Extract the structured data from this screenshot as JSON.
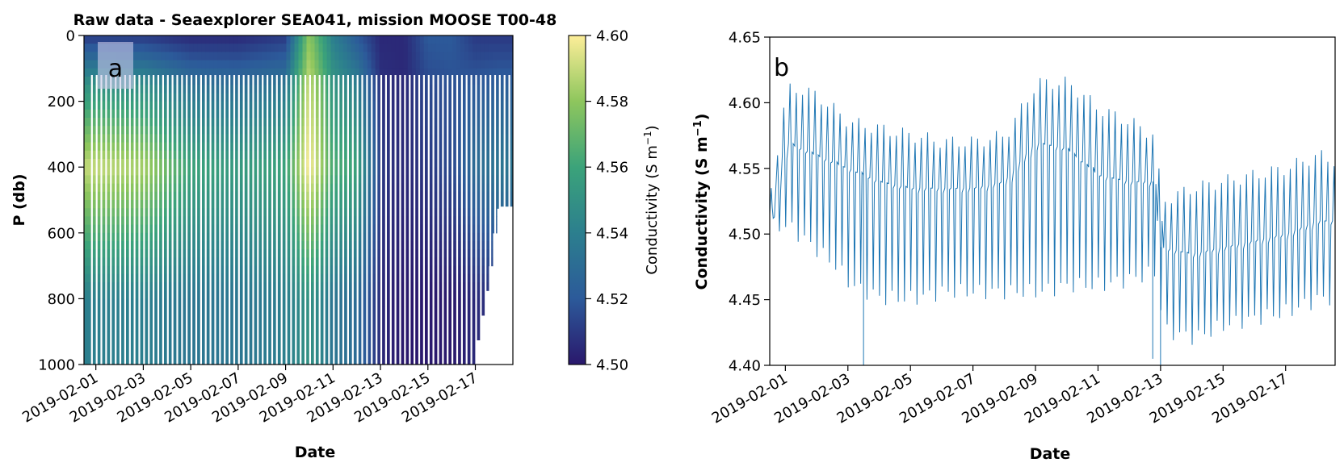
{
  "chart_data": [
    {
      "type": "heatmap",
      "title": "Raw data - Seaexplorer SEA041, mission MOOSE T00-48",
      "panel_label": "a",
      "xlabel": "Date",
      "ylabel": "P (db)",
      "x_ticks": [
        "2019-02-01",
        "2019-02-03",
        "2019-02-05",
        "2019-02-07",
        "2019-02-09",
        "2019-02-11",
        "2019-02-13",
        "2019-02-15",
        "2019-02-17"
      ],
      "y_ticks": [
        0,
        200,
        400,
        600,
        800,
        1000
      ],
      "y_tick_labels": [
        "0",
        "200",
        "400",
        "600",
        "800",
        "1000"
      ],
      "ylim": [
        1000,
        0
      ],
      "xlim": [
        "2019-01-31T12:00",
        "2019-02-18T14:00"
      ],
      "colorbar": {
        "label": "Conductivity (S m",
        "label_superscript": "−1",
        "label_suffix": ")",
        "range": [
          4.5,
          4.6
        ],
        "ticks": [
          4.5,
          4.52,
          4.54,
          4.56,
          4.58,
          4.6
        ],
        "tick_labels": [
          "4.50",
          "4.52",
          "4.54",
          "4.56",
          "4.58",
          "4.60"
        ],
        "colormap": "haline"
      },
      "bottom_depth_profile": {
        "dates": [
          "2019-02-01",
          "2019-02-03",
          "2019-02-05",
          "2019-02-07",
          "2019-02-09",
          "2019-02-10",
          "2019-02-11",
          "2019-02-12",
          "2019-02-13",
          "2019-02-15",
          "2019-02-17",
          "2019-02-18"
        ],
        "depth": [
          1000,
          1000,
          1000,
          1000,
          1000,
          1000,
          1000,
          1000,
          1000,
          1000,
          1000,
          520
        ]
      },
      "conductivity_by_period": {
        "dates": [
          "2019-02-01",
          "2019-02-03",
          "2019-02-05",
          "2019-02-07",
          "2019-02-09",
          "2019-02-10",
          "2019-02-11",
          "2019-02-12",
          "2019-02-13",
          "2019-02-14",
          "2019-02-15",
          "2019-02-16",
          "2019-02-17",
          "2019-02-18"
        ],
        "surface_0_150db": [
          4.51,
          4.51,
          4.505,
          4.505,
          4.51,
          4.58,
          4.54,
          4.52,
          4.505,
          4.505,
          4.52,
          4.52,
          4.51,
          4.51
        ],
        "mid_300_500db": [
          4.59,
          4.585,
          4.56,
          4.555,
          4.56,
          4.6,
          4.565,
          4.56,
          4.51,
          4.505,
          4.51,
          4.515,
          4.53,
          4.535
        ],
        "deep_700_1000db": [
          4.54,
          4.54,
          4.535,
          4.535,
          4.54,
          4.55,
          4.535,
          4.53,
          4.505,
          4.5,
          4.5,
          4.5,
          4.505,
          4.51
        ]
      }
    },
    {
      "type": "line",
      "panel_label": "b",
      "xlabel": "Date",
      "ylabel": "Conductivity (S m",
      "ylabel_superscript": "−1",
      "ylabel_suffix": ")",
      "x_ticks": [
        "2019-02-01",
        "2019-02-03",
        "2019-02-05",
        "2019-02-07",
        "2019-02-09",
        "2019-02-11",
        "2019-02-13",
        "2019-02-15",
        "2019-02-17"
      ],
      "y_ticks": [
        4.4,
        4.45,
        4.5,
        4.55,
        4.6,
        4.65
      ],
      "y_tick_labels": [
        "4.40",
        "4.45",
        "4.50",
        "4.55",
        "4.60",
        "4.65"
      ],
      "ylim": [
        4.4,
        4.65
      ],
      "xlim": [
        "2019-01-31T12:00",
        "2019-02-18T14:00"
      ],
      "color": "#1f77b4",
      "series": [
        {
          "x": [
            "2019-01-31T12:00",
            "2019-02-01T00:00",
            "2019-02-01T12:00",
            "2019-02-02T00:00",
            "2019-02-02T12:00",
            "2019-02-03T00:00",
            "2019-02-04T00:00",
            "2019-02-05T00:00",
            "2019-02-06T00:00",
            "2019-02-07T00:00",
            "2019-02-08T00:00",
            "2019-02-09T00:00",
            "2019-02-10T00:00",
            "2019-02-11T00:00",
            "2019-02-12T00:00",
            "2019-02-12T18:00",
            "2019-02-13T00:00",
            "2019-02-14T00:00",
            "2019-02-15T00:00",
            "2019-02-16T00:00",
            "2019-02-17T00:00",
            "2019-02-18T00:00",
            "2019-02-18T14:00"
          ],
          "baseline": [
            4.515,
            4.57,
            4.565,
            4.56,
            4.555,
            4.55,
            4.54,
            4.535,
            4.535,
            4.535,
            4.54,
            4.57,
            4.565,
            4.545,
            4.54,
            4.54,
            4.49,
            4.485,
            4.49,
            4.495,
            4.5,
            4.51,
            4.51
          ],
          "peak": [
            4.54,
            4.615,
            4.615,
            4.61,
            4.6,
            4.59,
            4.585,
            4.58,
            4.575,
            4.575,
            4.58,
            4.62,
            4.62,
            4.6,
            4.59,
            4.58,
            4.53,
            4.54,
            4.545,
            4.55,
            4.555,
            4.565,
            4.56
          ],
          "trough": [
            4.5,
            4.5,
            4.49,
            4.48,
            4.47,
            4.455,
            4.445,
            4.445,
            4.45,
            4.45,
            4.45,
            4.45,
            4.455,
            4.455,
            4.46,
            4.465,
            4.42,
            4.415,
            4.425,
            4.43,
            4.435,
            4.445,
            4.445
          ]
        }
      ],
      "outlier_spikes": [
        {
          "x": "2019-02-03T12:00",
          "y": 4.4
        },
        {
          "x": "2019-02-12T18:00",
          "y": 4.405
        },
        {
          "x": "2019-02-13T00:00",
          "y": 4.4
        }
      ]
    }
  ]
}
